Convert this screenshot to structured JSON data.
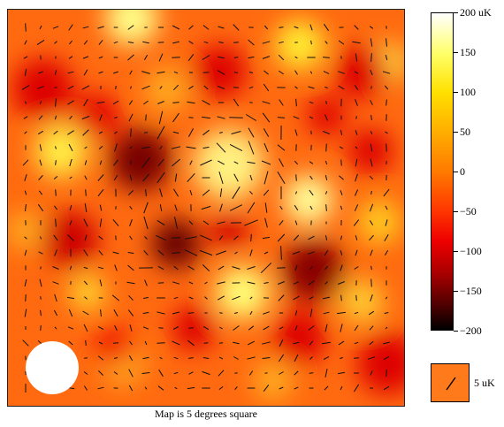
{
  "map": {
    "caption": "Map is 5 degrees square",
    "beam_shape": "white-disk"
  },
  "colorbar": {
    "ticks": [
      {
        "value": 200,
        "label": "200 uK"
      },
      {
        "value": 150,
        "label": "150"
      },
      {
        "value": 100,
        "label": "100"
      },
      {
        "value": 50,
        "label": "50"
      },
      {
        "value": 0,
        "label": "0"
      },
      {
        "value": -50,
        "label": "−50"
      },
      {
        "value": -100,
        "label": "−100"
      },
      {
        "value": -150,
        "label": "−150"
      },
      {
        "value": -200,
        "label": "−200"
      }
    ],
    "range": [
      -200,
      200
    ],
    "colors": {
      "high": "#ffffff",
      "yellow": "#ffff66",
      "orange": "#ff7a00",
      "red": "#ee0000",
      "low": "#000000"
    }
  },
  "polarization_legend": {
    "label": "5 uK",
    "swatch_color": "#ff7a1a",
    "tick_color": "#000000"
  }
}
